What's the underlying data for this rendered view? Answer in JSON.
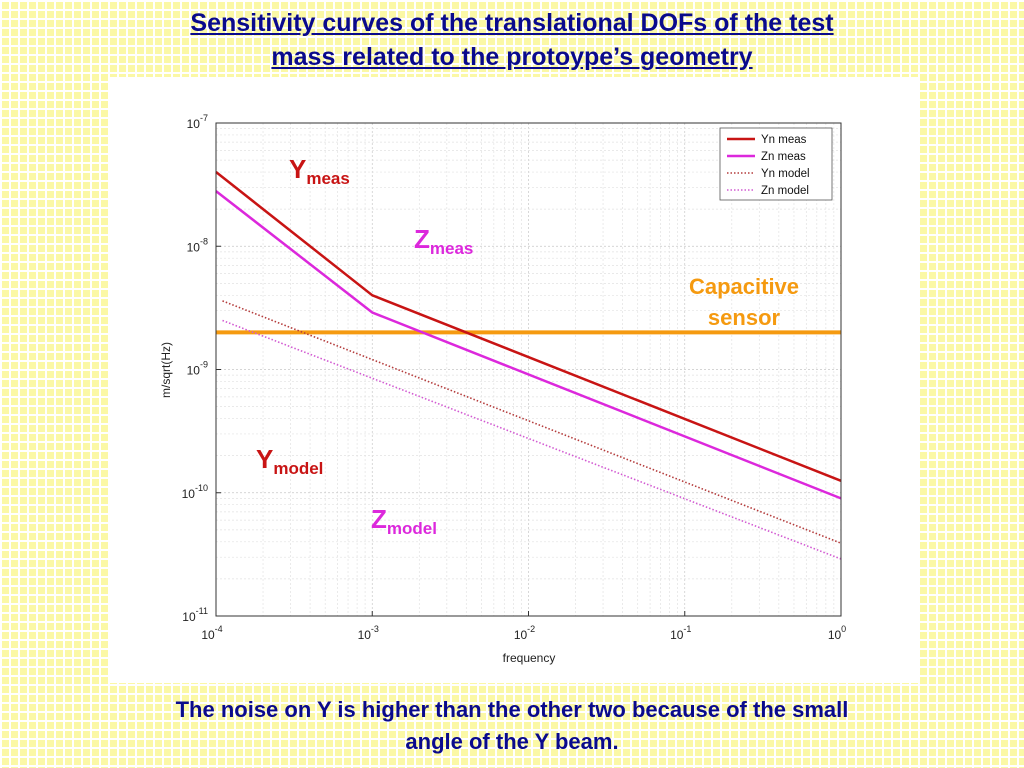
{
  "slide": {
    "title_line1": "Sensitivity curves of the translational DOFs of the test",
    "title_line2": "mass related to the protoype’s geometry",
    "caption_line1": "The noise on Y is higher than the other two because of the small",
    "caption_line2": "angle of the Y beam."
  },
  "colors": {
    "title_text": "#0a0a8c",
    "yn": "#c81414",
    "zn": "#dc28dc",
    "sensor": "#f59a10"
  },
  "chart_data": {
    "type": "line",
    "xscale": "log",
    "yscale": "log",
    "xlim": [
      0.0001,
      1
    ],
    "ylim": [
      1e-11,
      1e-07
    ],
    "xlabel": "frequency",
    "ylabel": "m/sqrt(Hz)",
    "grid": true,
    "legend_position": "top-right",
    "x_tick_labels": [
      {
        "base": "10",
        "exp": "-4",
        "value": 0.0001
      },
      {
        "base": "10",
        "exp": "-3",
        "value": 0.001
      },
      {
        "base": "10",
        "exp": "-2",
        "value": 0.01
      },
      {
        "base": "10",
        "exp": "-1",
        "value": 0.1
      },
      {
        "base": "10",
        "exp": "0",
        "value": 1
      }
    ],
    "y_tick_labels": [
      {
        "base": "10",
        "exp": "-7",
        "value": 1e-07
      },
      {
        "base": "10",
        "exp": "-8",
        "value": 1e-08
      },
      {
        "base": "10",
        "exp": "-9",
        "value": 1e-09
      },
      {
        "base": "10",
        "exp": "-10",
        "value": 1e-10
      },
      {
        "base": "10",
        "exp": "-11",
        "value": 1e-11
      }
    ],
    "series": [
      {
        "name": "Yn meas",
        "style": "solid",
        "color": "#c81414",
        "x": [
          0.0001,
          0.001,
          1
        ],
        "y": [
          4e-08,
          4e-09,
          1.25e-10
        ]
      },
      {
        "name": "Zn meas",
        "style": "solid",
        "color": "#dc28dc",
        "x": [
          0.0001,
          0.001,
          1
        ],
        "y": [
          2.8e-08,
          2.9e-09,
          9e-11
        ]
      },
      {
        "name": "Yn model",
        "style": "dotted",
        "color": "#b43c3c",
        "x": [
          0.00011,
          1
        ],
        "y": [
          3.6e-09,
          3.9e-11
        ]
      },
      {
        "name": "Zn model",
        "style": "dotted",
        "color": "#d25ad2",
        "x": [
          0.00011,
          1
        ],
        "y": [
          2.5e-09,
          2.9e-11
        ]
      }
    ],
    "reference_line": {
      "y": 2e-09,
      "color": "#f59a10"
    },
    "annotations": [
      {
        "id": "ymeas",
        "main": "Y",
        "sub": "meas",
        "color": "#c81414"
      },
      {
        "id": "zmeas",
        "main": "Z",
        "sub": "meas",
        "color": "#dc28dc"
      },
      {
        "id": "ymodel",
        "main": "Y",
        "sub": "model",
        "color": "#c81414"
      },
      {
        "id": "zmodel",
        "main": "Z",
        "sub": "model",
        "color": "#dc28dc"
      }
    ],
    "sensor_label_line1": "Capacitive",
    "sensor_label_line2": "sensor"
  }
}
